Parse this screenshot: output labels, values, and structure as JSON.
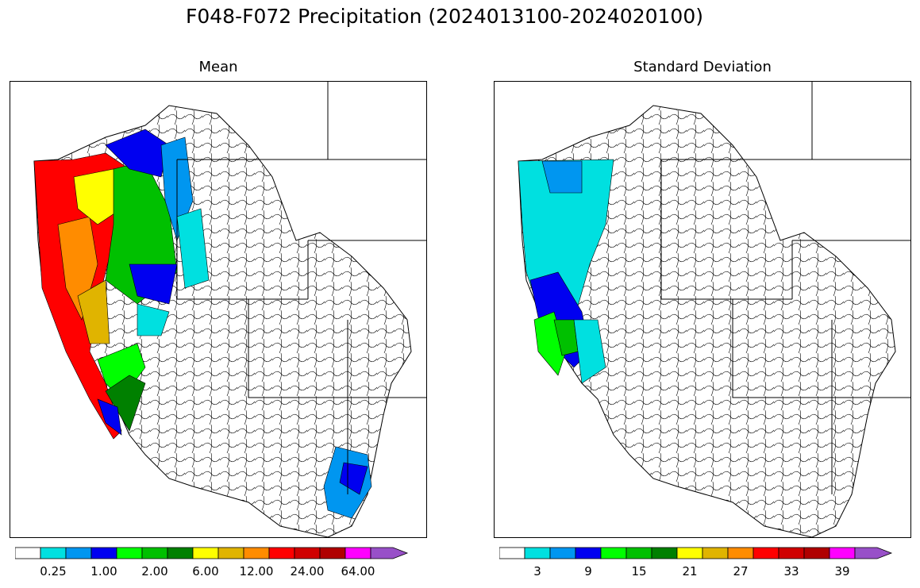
{
  "title": "F048-F072 Precipitation (2024013100-2024020100)",
  "panels": [
    {
      "title": "Mean",
      "colorbar": {
        "colors": [
          "#ffffff",
          "#00e0e0",
          "#0096f0",
          "#0000f0",
          "#00ff00",
          "#00c000",
          "#008000",
          "#ffff00",
          "#e0b400",
          "#ff8c00",
          "#ff0000",
          "#d00000",
          "#b00000",
          "#ff00ff",
          "#9850c8"
        ],
        "tick_labels": [
          "0.25",
          "1.00",
          "2.00",
          "6.00",
          "12.00",
          "24.00",
          "64.00"
        ],
        "tick_positions_bins": [
          1,
          3,
          5,
          7,
          9,
          11,
          13
        ]
      }
    },
    {
      "title": "Standard Deviation",
      "colorbar": {
        "colors": [
          "#ffffff",
          "#00e0e0",
          "#0096f0",
          "#0000f0",
          "#00ff00",
          "#00c000",
          "#008000",
          "#ffff00",
          "#e0b400",
          "#ff8c00",
          "#ff0000",
          "#d00000",
          "#b00000",
          "#ff00ff",
          "#9850c8"
        ],
        "tick_labels": [
          "3",
          "9",
          "15",
          "21",
          "27",
          "33",
          "39"
        ],
        "tick_positions_bins": [
          1,
          3,
          5,
          7,
          9,
          11,
          13
        ]
      }
    }
  ]
}
